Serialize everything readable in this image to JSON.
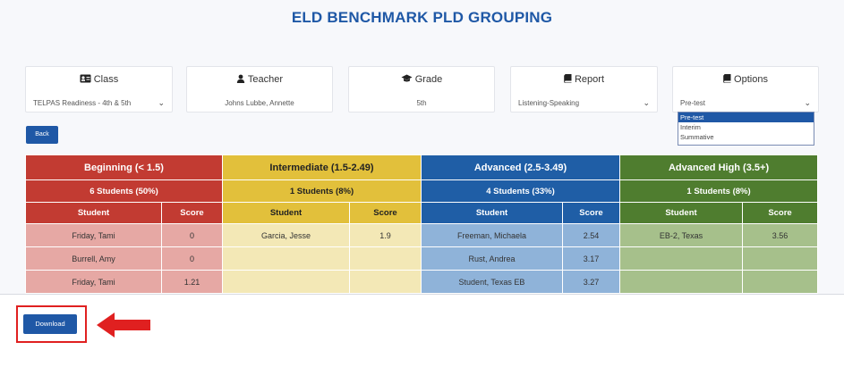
{
  "page": {
    "title": "ELD BENCHMARK PLD GROUPING"
  },
  "filters": {
    "class": {
      "label": "Class",
      "value": "TELPAS Readiness - 4th & 5th",
      "icon": "id-card-icon"
    },
    "teacher": {
      "label": "Teacher",
      "value": "Johns Lubbe, Annette",
      "icon": "user-icon"
    },
    "grade": {
      "label": "Grade",
      "value": "5th",
      "icon": "graduation-cap-icon"
    },
    "report": {
      "label": "Report",
      "value": "Listening-Speaking",
      "icon": "book-icon"
    },
    "options": {
      "label": "Options",
      "value": "Pre-test",
      "icon": "book-icon",
      "dropdown": [
        "Pre-test",
        "Interim",
        "Summative"
      ],
      "selected_index": 0
    }
  },
  "back_button": {
    "label": "Back"
  },
  "groups": [
    {
      "title": "Beginning (< 1.5)",
      "count": "6 Students (50%)",
      "color": "#c23b32"
    },
    {
      "title": "Intermediate (1.5-2.49)",
      "count": "1 Students (8%)",
      "color": "#e2c03b"
    },
    {
      "title": "Advanced (2.5-3.49)",
      "count": "4 Students (33%)",
      "color": "#1f5ea6"
    },
    {
      "title": "Advanced High (3.5+)",
      "count": "1 Students (8%)",
      "color": "#4f7d2f"
    }
  ],
  "columns": {
    "student": "Student",
    "score": "Score"
  },
  "rows": [
    {
      "beg_student": "Friday, Tami",
      "beg_score": "0",
      "int_student": "Garcia, Jesse",
      "int_score": "1.9",
      "adv_student": "Freeman, Michaela",
      "adv_score": "2.54",
      "ah_student": "EB-2, Texas",
      "ah_score": "3.56"
    },
    {
      "beg_student": "Burrell, Amy",
      "beg_score": "0",
      "int_student": "",
      "int_score": "",
      "adv_student": "Rust, Andrea",
      "adv_score": "3.17",
      "ah_student": "",
      "ah_score": ""
    },
    {
      "beg_student": "Friday, Tami",
      "beg_score": "1.21",
      "int_student": "",
      "int_score": "",
      "adv_student": "Student, Texas EB",
      "adv_score": "3.27",
      "ah_student": "",
      "ah_score": ""
    }
  ],
  "download_button": {
    "label": "Download"
  },
  "annotation": {
    "color": "#e02020",
    "icon": "arrow-left-icon"
  }
}
